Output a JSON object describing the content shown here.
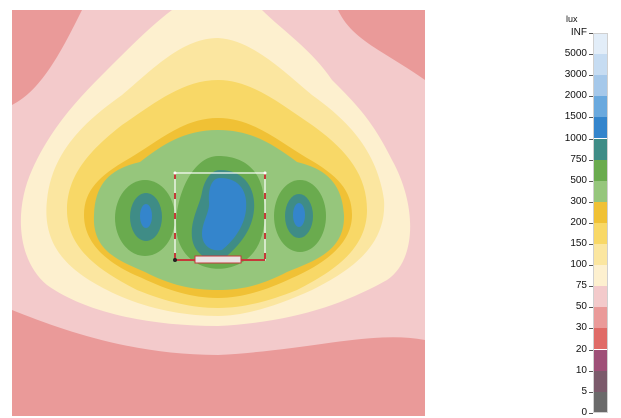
{
  "plot": {
    "name": "isolux-contour-plot",
    "colors": {
      "below5": "#6a6a6a",
      "c5": "#7b5a6b",
      "c10": "#9e4f77",
      "c20": "#e06b67",
      "c30": "#ea9a99",
      "c50": "#f3cacb",
      "c75": "#fdf0cf",
      "c100": "#fbe6a0",
      "c150": "#f8d867",
      "c200": "#f0c135",
      "c300": "#96c67c",
      "c500": "#6aab4e",
      "c750": "#3f8c86",
      "c1000": "#3485cc",
      "c1500": "#6aa9de",
      "c2000": "#a5c8ea",
      "c3000": "#c6dcf2",
      "c5000": "#e2edf8",
      "inf": "#f7f8fb",
      "fixture": "#c43a3a"
    }
  },
  "legend": {
    "unit": "lux",
    "levels": [
      {
        "label": "INF",
        "color": "#f7f8fb"
      },
      {
        "label": "5000",
        "color": "#e2edf8"
      },
      {
        "label": "3000",
        "color": "#c6dcf2"
      },
      {
        "label": "2000",
        "color": "#a5c8ea"
      },
      {
        "label": "1500",
        "color": "#6aa9de"
      },
      {
        "label": "1000",
        "color": "#3485cc"
      },
      {
        "label": "750",
        "color": "#3f8c86"
      },
      {
        "label": "500",
        "color": "#6aab4e"
      },
      {
        "label": "300",
        "color": "#96c67c"
      },
      {
        "label": "200",
        "color": "#f0c135"
      },
      {
        "label": "150",
        "color": "#f8d867"
      },
      {
        "label": "100",
        "color": "#fbe6a0"
      },
      {
        "label": "75",
        "color": "#fdf0cf"
      },
      {
        "label": "50",
        "color": "#f3cacb"
      },
      {
        "label": "30",
        "color": "#ea9a99"
      },
      {
        "label": "20",
        "color": "#e06b67"
      },
      {
        "label": "10",
        "color": "#9e4f77"
      },
      {
        "label": "5",
        "color": "#7b5a6b"
      },
      {
        "label": "0",
        "color": "#6a6a6a"
      }
    ]
  }
}
